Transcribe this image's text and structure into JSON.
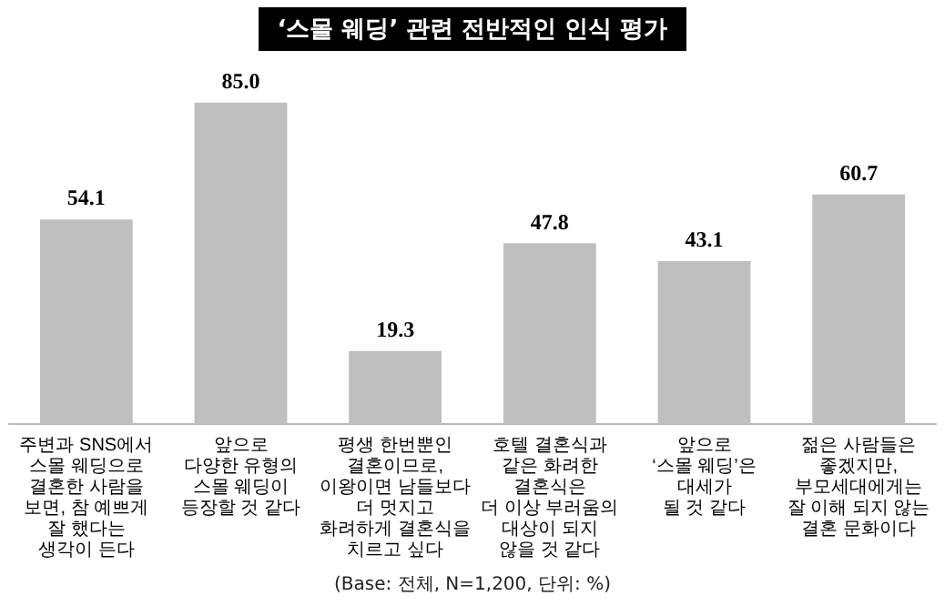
{
  "chart_data": {
    "type": "bar",
    "title": "‘스몰 웨딩’ 관련 전반적인 인식 평가",
    "categories": [
      "주변과 SNS에서\n스몰 웨딩으로\n결혼한 사람을\n보면, 참 예쁘게\n잘 했다는\n생각이 든다",
      "앞으로\n다양한 유형의\n스몰 웨딩이\n등장할 것 같다",
      "평생 한번뿐인\n결혼이므로,\n이왕이면 남들보다\n더 멋지고\n화려하게 결혼식을\n치르고 싶다",
      "호텔 결혼식과\n같은 화려한\n결혼식은\n더 이상 부러움의\n대상이 되지\n않을 것 같다",
      "앞으로\n‘스몰 웨딩’은\n대세가\n될 것 같다",
      "젊은 사람들은\n좋겠지만,\n부모세대에게는\n잘 이해 되지 않는\n결혼 문화이다"
    ],
    "values": [
      54.1,
      85.0,
      19.3,
      47.8,
      43.1,
      60.7
    ],
    "value_labels": [
      "54.1",
      "85.0",
      "19.3",
      "47.8",
      "43.1",
      "60.7"
    ],
    "color": "#bfbfbf",
    "annotations": [
      "(Base: 전체, N=1,200, 단위: %)"
    ],
    "grid": false,
    "legend": false
  }
}
